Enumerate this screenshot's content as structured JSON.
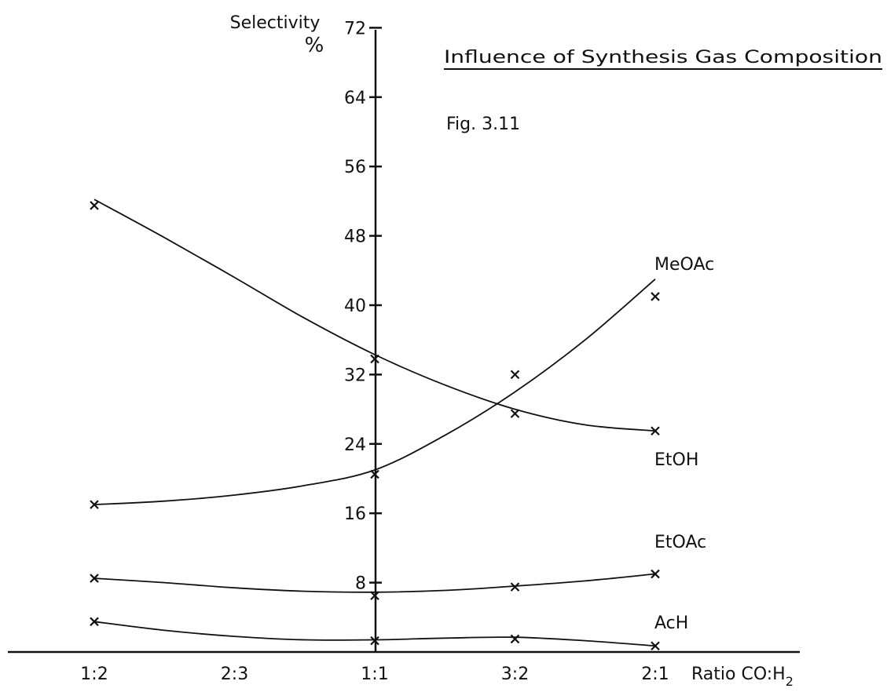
{
  "chart_data": {
    "type": "line",
    "title": "Influence of Synthesis Gas Composition",
    "figure_label": "Fig. 3.11",
    "ylabel": "Selectivity",
    "ylabel_unit": "%",
    "xlabel_prefix": "Ratio CO:H",
    "xlabel_subscript": "2",
    "categories": [
      "1:2",
      "2:3",
      "1:1",
      "3:2",
      "2:1"
    ],
    "y_ticks": [
      8,
      16,
      24,
      32,
      40,
      48,
      56,
      64,
      72
    ],
    "ylim": [
      0,
      72
    ],
    "grid": false,
    "series": [
      {
        "name": "EtOH",
        "points": [
          [
            0,
            51.5
          ],
          [
            2,
            33.8
          ],
          [
            3,
            27.5
          ],
          [
            4,
            25.5
          ]
        ]
      },
      {
        "name": "MeOAc",
        "points": [
          [
            0,
            17.0
          ],
          [
            2,
            20.5
          ],
          [
            3,
            32.0
          ],
          [
            4,
            41.0
          ]
        ]
      },
      {
        "name": "EtOAc",
        "points": [
          [
            0,
            8.5
          ],
          [
            2,
            6.5
          ],
          [
            3,
            7.5
          ],
          [
            4,
            9.0
          ]
        ]
      },
      {
        "name": "AcH",
        "points": [
          [
            0,
            3.5
          ],
          [
            2,
            1.3
          ],
          [
            3,
            1.5
          ],
          [
            4,
            0.7
          ]
        ]
      }
    ],
    "curves": [
      [
        [
          0,
          52.2
        ],
        [
          0.5,
          47.8
        ],
        [
          1,
          43.2
        ],
        [
          1.5,
          38.5
        ],
        [
          2,
          34.3
        ],
        [
          2.5,
          30.8
        ],
        [
          3,
          28.0
        ],
        [
          3.5,
          26.2
        ],
        [
          4,
          25.5
        ]
      ],
      [
        [
          0,
          17.0
        ],
        [
          0.5,
          17.4
        ],
        [
          1,
          18.1
        ],
        [
          1.5,
          19.2
        ],
        [
          2,
          21.0
        ],
        [
          2.5,
          25.0
        ],
        [
          3,
          30.0
        ],
        [
          3.5,
          36.0
        ],
        [
          4,
          43.0
        ]
      ],
      [
        [
          0,
          8.5
        ],
        [
          0.5,
          8.0
        ],
        [
          1,
          7.4
        ],
        [
          1.5,
          7.0
        ],
        [
          2,
          6.9
        ],
        [
          2.5,
          7.1
        ],
        [
          3,
          7.6
        ],
        [
          3.5,
          8.2
        ],
        [
          4,
          9.0
        ]
      ],
      [
        [
          0,
          3.5
        ],
        [
          0.5,
          2.5
        ],
        [
          1,
          1.8
        ],
        [
          1.5,
          1.4
        ],
        [
          2,
          1.4
        ],
        [
          2.5,
          1.6
        ],
        [
          3,
          1.7
        ],
        [
          3.5,
          1.3
        ],
        [
          4,
          0.7
        ]
      ]
    ]
  }
}
